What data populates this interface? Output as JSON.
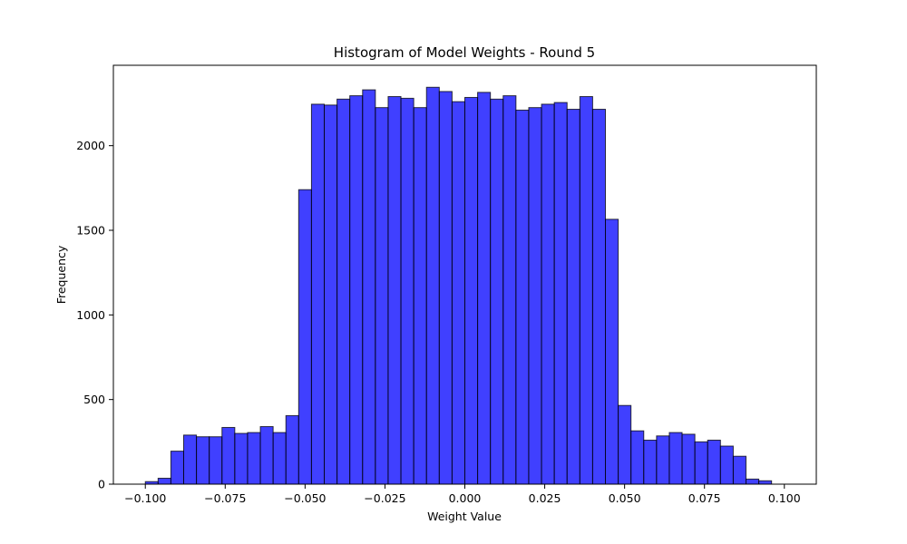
{
  "chart_data": {
    "type": "bar",
    "title": "Histogram of Model Weights - Round 5",
    "xlabel": "Weight Value",
    "ylabel": "Frequency",
    "xlim": [
      -0.11,
      0.11
    ],
    "ylim": [
      0,
      2475
    ],
    "xticks": [
      {
        "value": -0.1,
        "label": "−0.100"
      },
      {
        "value": -0.075,
        "label": "−0.075"
      },
      {
        "value": -0.05,
        "label": "−0.050"
      },
      {
        "value": -0.025,
        "label": "−0.025"
      },
      {
        "value": 0.0,
        "label": "0.000"
      },
      {
        "value": 0.025,
        "label": "0.025"
      },
      {
        "value": 0.05,
        "label": "0.050"
      },
      {
        "value": 0.075,
        "label": "0.075"
      },
      {
        "value": 0.1,
        "label": "0.100"
      }
    ],
    "yticks": [
      {
        "value": 0,
        "label": "0"
      },
      {
        "value": 500,
        "label": "500"
      },
      {
        "value": 1000,
        "label": "1000"
      },
      {
        "value": 1500,
        "label": "1500"
      },
      {
        "value": 2000,
        "label": "2000"
      }
    ],
    "bin_range": [
      -0.1,
      0.1
    ],
    "bin_count": 50,
    "values": [
      15,
      35,
      195,
      290,
      280,
      280,
      335,
      300,
      305,
      340,
      305,
      405,
      1740,
      2245,
      2240,
      2275,
      2295,
      2330,
      2225,
      2290,
      2280,
      2225,
      2345,
      2320,
      2260,
      2285,
      2315,
      2275,
      2295,
      2210,
      2225,
      2245,
      2255,
      2215,
      2290,
      2215,
      1565,
      465,
      315,
      260,
      285,
      305,
      295,
      250,
      260,
      225,
      165,
      30,
      20,
      0
    ],
    "colors": {
      "bar_fill": "#0000ff",
      "bar_edge": "#000000",
      "background": "#ffffff"
    },
    "grid": false,
    "legend": "none"
  }
}
